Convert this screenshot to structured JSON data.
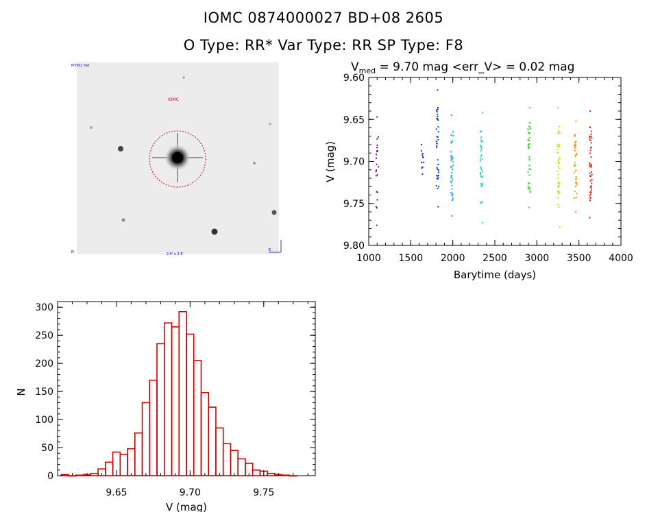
{
  "header": {
    "title_line1": "IOMC 0874000027    BD+08  2605",
    "title_line2": "O Type: RR*  Var Type: RR  SP Type: F8"
  },
  "finder_chart": {
    "label_top_left": "POSS2 red",
    "label_target": "IOMC",
    "label_bottom_left": "N",
    "label_bottom_center": "2.5' x 2.5'",
    "label_bottom_right": "E"
  },
  "chart_data": [
    {
      "type": "scatter",
      "title_prefix": "V",
      "title_subscript": "med",
      "title_rest": " = 9.70 mag <err_V> = 0.02 mag",
      "xlabel": "Barytime (days)",
      "ylabel": "V (mag)",
      "xlim": [
        1000,
        4000
      ],
      "ylim": [
        9.8,
        9.6
      ],
      "xticks": [
        1000,
        1500,
        2000,
        2500,
        3000,
        3500,
        4000
      ],
      "yticks": [
        9.6,
        9.65,
        9.7,
        9.75,
        9.8
      ],
      "xtick_labels": [
        "1000",
        "1500",
        "2000",
        "2500",
        "3000",
        "3500",
        "4000"
      ],
      "ytick_labels": [
        "9.60",
        "9.65",
        "9.70",
        "9.75",
        "9.80"
      ],
      "groups": [
        {
          "x": 1100,
          "y_min": 9.647,
          "y_max": 9.776,
          "color": "#6a0a8a",
          "count": 22
        },
        {
          "x": 1640,
          "y_min": 9.68,
          "y_max": 9.715,
          "color": "#4b0c9a",
          "count": 12
        },
        {
          "x": 1820,
          "y_min": 9.615,
          "y_max": 9.754,
          "color": "#1438c8",
          "count": 40
        },
        {
          "x": 1990,
          "y_min": 9.645,
          "y_max": 9.765,
          "color": "#1aa5e0",
          "count": 40
        },
        {
          "x": 2340,
          "y_min": 9.642,
          "y_max": 9.773,
          "color": "#20d8c0",
          "count": 38
        },
        {
          "x": 2910,
          "y_min": 9.636,
          "y_max": 9.755,
          "color": "#38d838",
          "count": 40
        },
        {
          "x": 3260,
          "y_min": 9.636,
          "y_max": 9.778,
          "color": "#c8e018",
          "count": 45
        },
        {
          "x": 3460,
          "y_min": 9.652,
          "y_max": 9.76,
          "color": "#f0a010",
          "count": 45
        },
        {
          "x": 3640,
          "y_min": 9.64,
          "y_max": 9.767,
          "color": "#e02010",
          "count": 45
        }
      ]
    },
    {
      "type": "bar",
      "xlabel": "V (mag)",
      "ylabel": "N",
      "xlim": [
        9.61,
        9.785
      ],
      "ylim": [
        0,
        310
      ],
      "xticks": [
        9.65,
        9.7,
        9.75
      ],
      "xtick_labels": [
        "9.65",
        "9.70",
        "9.75"
      ],
      "yticks": [
        0,
        50,
        100,
        150,
        200,
        250,
        300
      ],
      "ytick_labels": [
        "0",
        "50",
        "100",
        "150",
        "200",
        "250",
        "300"
      ],
      "bin_start": 9.6125,
      "bin_width": 0.005,
      "color": "#cc0000",
      "values": [
        2,
        0,
        1,
        2,
        4,
        12,
        24,
        42,
        38,
        48,
        76,
        130,
        170,
        235,
        272,
        265,
        292,
        252,
        205,
        148,
        122,
        85,
        57,
        45,
        30,
        22,
        10,
        8,
        4,
        2,
        1,
        0
      ]
    }
  ]
}
